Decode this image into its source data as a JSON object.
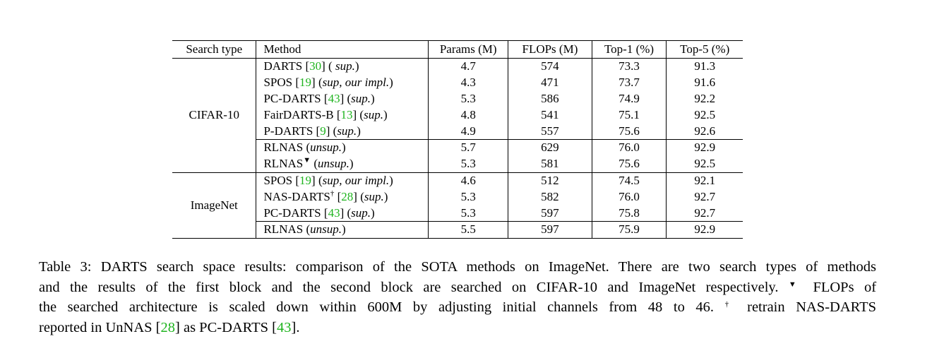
{
  "table": {
    "headers": [
      "Search type",
      "Method",
      "Params (M)",
      "FLOPs (M)",
      "Top-1 (%)",
      "Top-5 (%)"
    ],
    "groups": [
      {
        "search_type": "CIFAR-10",
        "rows": [
          {
            "name": "DARTS",
            "mark": "",
            "ref": "30",
            "pre": "( ",
            "tag": "sup.",
            "post": ")",
            "params": "4.7",
            "flops": "574",
            "top1": "73.3",
            "top5": "91.3",
            "top1_bold": false,
            "top5_bold": false,
            "sub_start": false
          },
          {
            "name": "SPOS",
            "mark": "",
            "ref": "19",
            "pre": "(",
            "tag": "sup, our impl.",
            "post": ")",
            "params": "4.3",
            "flops": "471",
            "top1": "73.7",
            "top5": "91.6",
            "top1_bold": false,
            "top5_bold": false,
            "sub_start": false
          },
          {
            "name": "PC-DARTS",
            "mark": "",
            "ref": "43",
            "pre": "(",
            "tag": "sup.",
            "post": ")",
            "params": "5.3",
            "flops": "586",
            "top1": "74.9",
            "top5": "92.2",
            "top1_bold": false,
            "top5_bold": false,
            "sub_start": false
          },
          {
            "name": "FairDARTS-B",
            "mark": "",
            "ref": "13",
            "pre": "(",
            "tag": "sup.",
            "post": ")",
            "params": "4.8",
            "flops": "541",
            "top1": "75.1",
            "top5": "92.5",
            "top1_bold": false,
            "top5_bold": false,
            "sub_start": false
          },
          {
            "name": "P-DARTS",
            "mark": "",
            "ref": "9",
            "pre": "(",
            "tag": "sup.",
            "post": ")",
            "params": "4.9",
            "flops": "557",
            "top1": "75.6",
            "top5": "92.6",
            "top1_bold": false,
            "top5_bold": false,
            "sub_start": false
          },
          {
            "name": "RLNAS",
            "mark": "",
            "ref": "",
            "pre": "(",
            "tag": "unsup.",
            "post": ")",
            "params": "5.7",
            "flops": "629",
            "top1": "76.0",
            "top5": "92.9",
            "top1_bold": true,
            "top5_bold": true,
            "sub_start": true
          },
          {
            "name": "RLNAS",
            "mark": "▼",
            "ref": "",
            "pre": "(",
            "tag": "unsup.",
            "post": ")",
            "params": "5.3",
            "flops": "581",
            "top1": "75.6",
            "top5": "92.5",
            "top1_bold": false,
            "top5_bold": false,
            "sub_start": false
          }
        ]
      },
      {
        "search_type": "ImageNet",
        "rows": [
          {
            "name": "SPOS",
            "mark": "",
            "ref": "19",
            "pre": "(",
            "tag": "sup, our impl.",
            "post": ")",
            "params": "4.6",
            "flops": "512",
            "top1": "74.5",
            "top5": "92.1",
            "top1_bold": false,
            "top5_bold": false,
            "sub_start": false
          },
          {
            "name": "NAS-DARTS",
            "mark": "†",
            "ref": "28",
            "pre": "(",
            "tag": "sup.",
            "post": ")",
            "params": "5.3",
            "flops": "582",
            "top1": "76.0",
            "top5": "92.7",
            "top1_bold": true,
            "top5_bold": false,
            "sub_start": false
          },
          {
            "name": "PC-DARTS",
            "mark": "",
            "ref": "43",
            "pre": "(",
            "tag": "sup.",
            "post": ")",
            "params": "5.3",
            "flops": "597",
            "top1": "75.8",
            "top5": "92.7",
            "top1_bold": false,
            "top5_bold": false,
            "sub_start": false
          },
          {
            "name": "RLNAS",
            "mark": "",
            "ref": "",
            "pre": "(",
            "tag": "unsup.",
            "post": ")",
            "params": "5.5",
            "flops": "597",
            "top1": "75.9",
            "top5": "92.9",
            "top1_bold": false,
            "top5_bold": true,
            "sub_start": true
          }
        ]
      }
    ]
  },
  "caption": {
    "line1": "Table 3: DARTS search space results: comparison of the SOTA methods on ImageNet. There are two search types of methods",
    "line2_a": "and the results of the first block and the second block are searched on CIFAR-10 and ImageNet respectively.",
    "line2_mark": "▼",
    "line2_b": "FLOPs of",
    "line3_a": "the searched architecture is scaled down within 600M by adjusting initial channels from 48 to 46.",
    "line3_mark": "†",
    "line3_b": "retrain NAS-DARTS",
    "line4_a": "reported in UnNAS [",
    "line4_ref1": "28",
    "line4_b": "] as PC-DARTS [",
    "line4_ref2": "43",
    "line4_c": "]."
  },
  "colors": {
    "citation": "#1fb41f",
    "text": "#000000",
    "background": "#ffffff"
  }
}
